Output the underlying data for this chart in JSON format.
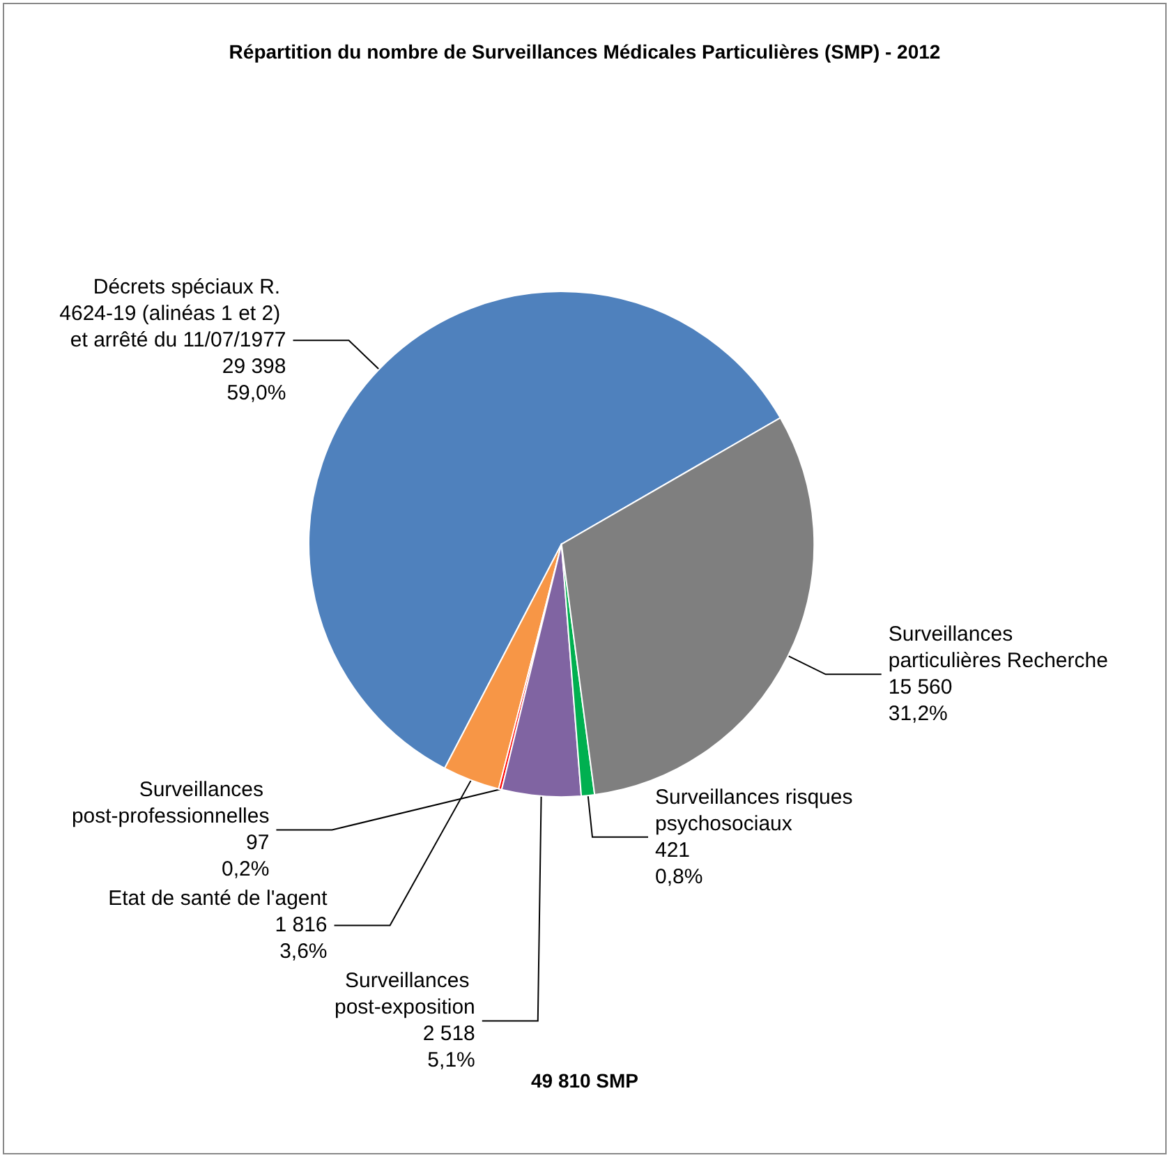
{
  "chart_data": {
    "type": "pie",
    "title": "Répartition du nombre de Surveillances Médicales Particulières (SMP) - 2012",
    "categories": [
      "Décrets spéciaux R. 4624-19 (alinéas 1 et 2) et arrêté du 11/07/1977",
      "Etat de santé de l'agent",
      "Surveillances post-professionnelles",
      "Surveillances post-exposition",
      "Surveillances risques psychosociaux",
      "Surveillances particulières Recherche"
    ],
    "values": [
      29398,
      1816,
      97,
      2518,
      421,
      15560
    ],
    "value_labels": [
      "29 398\n59,0%",
      "1 816\n3,6%",
      "97\n0,2%",
      "2 518\n5,1%",
      "421\n0,8%",
      "15 560\n31,2%"
    ],
    "colors": [
      "#4f81bd",
      "#f79646",
      "#ff0000",
      "#8064a2",
      "#00b050",
      "#7f7f7f"
    ],
    "annotations": [
      "49 810 SMP"
    ]
  }
}
